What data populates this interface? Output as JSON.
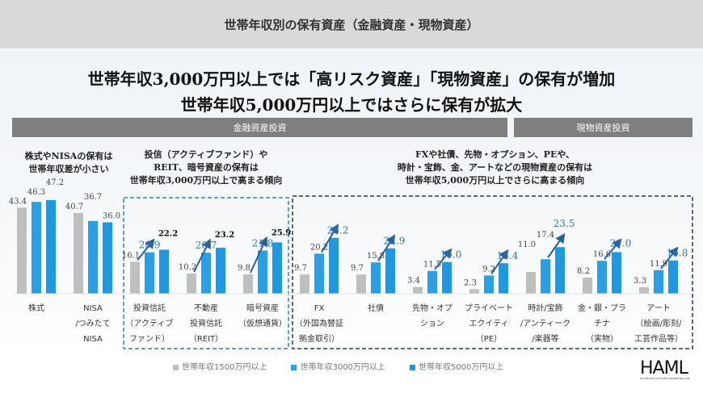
{
  "header": {
    "title": "世帯年収別の保有資産（金融資産・現物資産）"
  },
  "headline": {
    "line1": "世帯年収3,000万円以上では「高リスク資産」「現物資産」の保有が増加",
    "line2": "世帯年収5,000万円以上ではさらに保有が拡大"
  },
  "sections": {
    "financial": "金融資産投資",
    "physical": "現物資産投資"
  },
  "subheads": {
    "left": [
      "株式やNISAの保有は",
      "世帯年収差が小さい"
    ],
    "middle": [
      "投信（アクティブファンド）や",
      "REIT、暗号資産の保有は",
      "世帯年収3,000万円以上で高まる傾向"
    ],
    "right": [
      "FXや社債、先物・オプション、PEや、",
      "時計・宝飾、金、アートなどの現物資産の保有は",
      "世帯年収5,000万円以上でさらに高まる傾向"
    ]
  },
  "logo": {
    "text": "HAML",
    "tagline": "HOUSEHOLD AFFLUENT MARKETING LAB"
  },
  "colors": {
    "s1500": "#bfbfbf",
    "s3000": "#2a9fe3",
    "s5000": "#1e98e0",
    "highlight": "#2f78b8",
    "box_mid": "#2f7fb8",
    "box_right": "#2a3550"
  },
  "chart_data": {
    "type": "bar",
    "categories": [
      [
        "株式"
      ],
      [
        "NISA",
        "/つみたて",
        "NISA"
      ],
      [
        "投資信託",
        "（アクティブ",
        "ファンド）"
      ],
      [
        "不動産",
        "投資信託",
        "（REIT）"
      ],
      [
        "暗号資産",
        "（仮想通貨）"
      ],
      [
        "FX",
        "（外国為替証",
        "拠金取引）"
      ],
      [
        "社債"
      ],
      [
        "先物・オプ",
        "ション"
      ],
      [
        "プライベート",
        "エクイティ",
        "（PE）"
      ],
      [
        "時計/宝飾",
        "/アンティーク",
        "/楽器等"
      ],
      [
        "金・銀・プラ",
        "チナ",
        "（実物）"
      ],
      [
        "アート",
        "（絵画/彫刻/",
        "工芸作品等）"
      ]
    ],
    "series": [
      {
        "name": "世帯年収1500万円以上",
        "values": [
          43.4,
          40.7,
          16.1,
          10.2,
          9.8,
          9.7,
          9.7,
          3.4,
          2.3,
          11.0,
          8.2,
          3.3
        ]
      },
      {
        "name": "世帯年収3000万円以上",
        "values": [
          46.3,
          36.7,
          20.9,
          20.7,
          21.8,
          20.2,
          15.8,
          11.5,
          9.2,
          17.4,
          16.6,
          11.9
        ]
      },
      {
        "name": "世帯年収5000万円以上",
        "values": [
          47.2,
          36.0,
          22.2,
          23.2,
          25.9,
          28.2,
          22.9,
          16.0,
          15.4,
          23.5,
          21.0,
          16.8
        ]
      }
    ],
    "ylim": [
      0,
      50
    ],
    "grid": false,
    "legend": "bottom"
  }
}
